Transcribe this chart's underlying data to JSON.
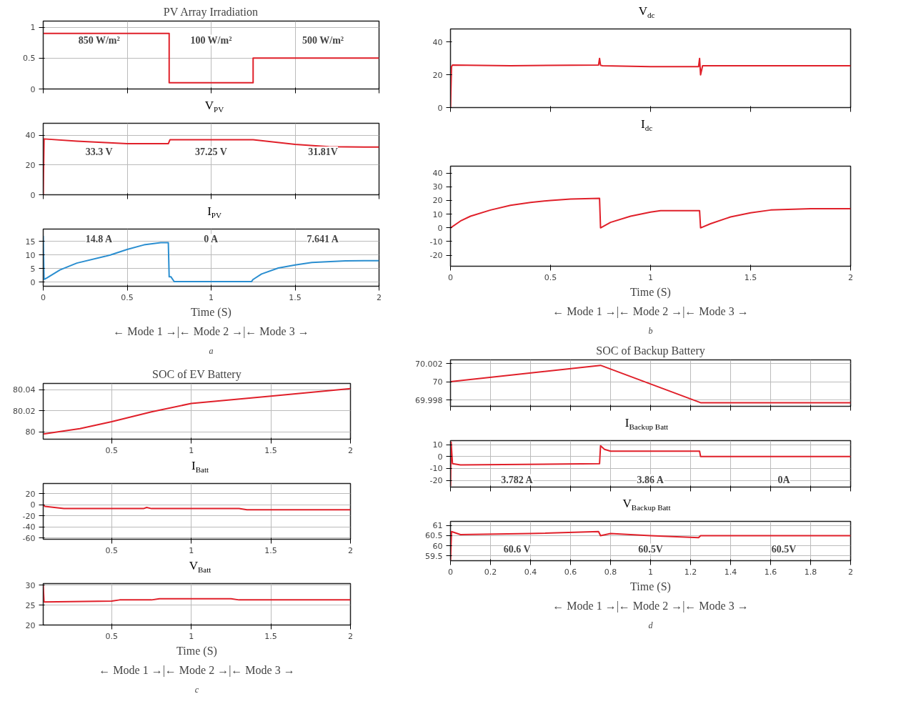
{
  "chart_data": [
    {
      "type": "step",
      "title": "PV Array Irradiation",
      "x": [
        0,
        0.75,
        1.25,
        2
      ],
      "xlim": [
        0,
        2
      ],
      "xticks": [
        0,
        0.5,
        1,
        1.5,
        2
      ],
      "ylim": [
        0,
        1.1
      ],
      "yticks": [
        0,
        0.5,
        1
      ],
      "grid": true,
      "tick_labels": "y",
      "series": [
        {
          "color": "#e0202a",
          "values": [
            0.9,
            0.1,
            0.5,
            0.5
          ]
        }
      ],
      "annotations": [
        "850 W/m²",
        "100 W/m²",
        "500 W/m²"
      ]
    },
    {
      "type": "line",
      "title": "V$_{dc}$",
      "x": [
        0,
        0.005,
        0.01,
        0.3,
        0.74,
        0.745,
        0.75,
        0.76,
        1.0,
        1.24,
        1.245,
        1.25,
        1.26,
        1.5,
        2
      ],
      "xlim": [
        0,
        2
      ],
      "xticks": [
        0,
        0.5,
        1,
        1.5,
        2
      ],
      "ylim": [
        0,
        48
      ],
      "yticks": [
        0,
        20,
        40
      ],
      "tick_labels": "y",
      "series": [
        {
          "color": "#e0202a",
          "values": [
            0,
            25,
            26,
            25.5,
            26,
            30,
            25.8,
            25.5,
            25,
            25,
            30,
            20,
            25.5,
            25.5,
            25.5
          ]
        }
      ]
    },
    {
      "type": "line",
      "title": "V$_{PV}$",
      "x": [
        0,
        0.005,
        0.2,
        0.5,
        0.745,
        0.755,
        1.25,
        1.5,
        1.7,
        2
      ],
      "xlim": [
        0,
        2
      ],
      "xticks": [
        0,
        0.5,
        1,
        1.5,
        2
      ],
      "ylim": [
        0,
        48
      ],
      "yticks": [
        0,
        20,
        40
      ],
      "grid": true,
      "tick_labels": "y",
      "series": [
        {
          "color": "#e0202a",
          "values": [
            0,
            37.5,
            36,
            34.3,
            34.3,
            37,
            37,
            33.8,
            32.3,
            32
          ]
        }
      ],
      "annotations": [
        "33.3 V",
        "37.25 V",
        "31.81V"
      ]
    },
    {
      "type": "line",
      "title": "I$_{dc}$",
      "xlabel": "Time (S)",
      "x": [
        0,
        0.05,
        0.1,
        0.2,
        0.3,
        0.4,
        0.5,
        0.6,
        0.745,
        0.75,
        0.8,
        0.9,
        1.0,
        1.05,
        1.245,
        1.25,
        1.3,
        1.4,
        1.5,
        1.6,
        1.8,
        2
      ],
      "xlim": [
        0,
        2
      ],
      "xticks": [
        0,
        0.5,
        1,
        1.5,
        2
      ],
      "ylim": [
        -28,
        45
      ],
      "yticks": [
        -20,
        -10,
        0,
        10,
        20,
        30,
        40
      ],
      "series": [
        {
          "color": "#e0202a",
          "values": [
            0,
            5,
            8.5,
            13,
            16.5,
            18.5,
            20,
            21,
            21.5,
            0,
            4,
            8.5,
            11.5,
            12.5,
            12.5,
            0,
            3,
            8,
            11,
            13,
            14,
            14
          ]
        }
      ],
      "annotations": [
        "← Mode 1 →|← Mode 2 →|← Mode 3 →",
        "b"
      ]
    },
    {
      "type": "line",
      "title": "I$_{PV}$",
      "xlabel": "Time (S)",
      "x": [
        0,
        0.005,
        0.02,
        0.1,
        0.2,
        0.37,
        0.4,
        0.5,
        0.6,
        0.7,
        0.745,
        0.75,
        0.76,
        0.78,
        0.8,
        1.0,
        1.24,
        1.25,
        1.3,
        1.4,
        1.5,
        1.6,
        1.8,
        2
      ],
      "xlim": [
        0,
        2
      ],
      "xticks": [
        0,
        0.5,
        1,
        1.5,
        2
      ],
      "ylim": [
        -1.5,
        19.5
      ],
      "yticks": [
        0,
        5,
        10,
        15
      ],
      "grid": true,
      "series": [
        {
          "color": "#2a8ed0",
          "values": [
            17,
            1,
            1.5,
            4.5,
            7,
            9.5,
            10,
            12,
            13.7,
            14.5,
            14.5,
            2,
            2,
            0.2,
            0.2,
            0.2,
            0.2,
            1,
            3,
            5.2,
            6.3,
            7.2,
            7.8,
            7.9
          ]
        }
      ],
      "annotations": [
        "14.8 A",
        "0 A",
        "7.641 A",
        "← Mode 1 →|← Mode 2 →|← Mode 3 →",
        "a"
      ]
    },
    {
      "type": "line",
      "title": "SOC of Backup Battery",
      "x": [
        0,
        0.75,
        1.25,
        2
      ],
      "xlim": [
        0,
        2
      ],
      "xticks": [
        0,
        0.2,
        0.4,
        0.6,
        0.8,
        1,
        1.2,
        1.4,
        1.6,
        1.8,
        2
      ],
      "ylim": [
        69.9973,
        70.0024
      ],
      "yticks": [
        69.998,
        70,
        70.002
      ],
      "grid": true,
      "tick_labels": "y",
      "series": [
        {
          "color": "#e0202a",
          "values": [
            70,
            70.0018,
            69.9977,
            69.9977
          ]
        }
      ]
    },
    {
      "type": "line",
      "title": "SOC of EV Battery",
      "x": [
        0.07,
        0.3,
        0.5,
        0.75,
        1.0,
        1.5,
        2
      ],
      "xlim": [
        0.07,
        2
      ],
      "xticks": [
        0.5,
        1,
        1.5,
        2
      ],
      "ylim": [
        79.993,
        80.046
      ],
      "yticks": [
        80,
        80.02,
        80.04
      ],
      "grid": true,
      "series": [
        {
          "color": "#e0202a",
          "values": [
            79.998,
            80.003,
            80.0096,
            80.019,
            80.027,
            80.034,
            80.041
          ]
        }
      ]
    },
    {
      "type": "line",
      "title": "I$_{Backup Batt}$",
      "x": [
        0,
        0.003,
        0.01,
        0.05,
        0.745,
        0.75,
        0.77,
        0.8,
        1.245,
        1.25,
        2
      ],
      "xlim": [
        0,
        2
      ],
      "xticks": [
        0,
        0.2,
        0.4,
        0.6,
        0.8,
        1,
        1.2,
        1.4,
        1.6,
        1.8,
        2
      ],
      "ylim": [
        -25.7,
        13.4
      ],
      "yticks": [
        -20,
        -10,
        0,
        10
      ],
      "grid": true,
      "tick_labels": "y",
      "series": [
        {
          "color": "#e0202a",
          "values": [
            -25,
            12,
            -6,
            -7,
            -6,
            9,
            6,
            4.5,
            4.5,
            0,
            0
          ]
        }
      ],
      "annotations": [
        "3.782 A",
        "3.86 A",
        "0A"
      ]
    },
    {
      "type": "line",
      "title": "I$_{Batt}$",
      "x": [
        0.07,
        0.08,
        0.2,
        0.7,
        0.72,
        0.75,
        1.3,
        1.35,
        2
      ],
      "xlim": [
        0.07,
        2
      ],
      "xticks": [
        0.5,
        1,
        1.5,
        2
      ],
      "ylim": [
        -62,
        38
      ],
      "yticks": [
        -60,
        -40,
        -20,
        0,
        20
      ],
      "grid": true,
      "series": [
        {
          "color": "#e0202a",
          "values": [
            0,
            -3,
            -7,
            -7,
            -5,
            -7,
            -7,
            -9,
            -9
          ]
        }
      ]
    },
    {
      "type": "line",
      "title": "V$_{Backup Batt}$",
      "xlabel": "Time (S)",
      "x": [
        0,
        0.005,
        0.05,
        0.4,
        0.74,
        0.75,
        0.8,
        1.0,
        1.24,
        1.25,
        2
      ],
      "xlim": [
        0,
        2
      ],
      "xticks": [
        0,
        0.2,
        0.4,
        0.6,
        0.8,
        1,
        1.2,
        1.4,
        1.6,
        1.8,
        2
      ],
      "ylim": [
        59.27,
        61.2
      ],
      "yticks": [
        59.5,
        60,
        60.5,
        61
      ],
      "grid": true,
      "series": [
        {
          "color": "#e0202a",
          "values": [
            59.3,
            60.7,
            60.55,
            60.6,
            60.7,
            60.5,
            60.6,
            60.5,
            60.4,
            60.5,
            60.5
          ]
        }
      ],
      "annotations": [
        "60.6 V",
        "60.5V",
        "60.5V",
        "← Mode 1 →|← Mode 2 →|← Mode 3 →",
        "d"
      ]
    },
    {
      "type": "line",
      "title": "V$_{Batt}$",
      "xlabel": "Time (S)",
      "x": [
        0.07,
        0.075,
        0.5,
        0.55,
        0.75,
        0.8,
        1.25,
        1.3,
        2
      ],
      "xlim": [
        0.07,
        2
      ],
      "xticks": [
        0.5,
        1,
        1.5,
        2
      ],
      "ylim": [
        20,
        30.4
      ],
      "yticks": [
        20,
        25,
        30
      ],
      "grid": true,
      "series": [
        {
          "color": "#e0202a",
          "values": [
            30,
            25.8,
            26,
            26.3,
            26.3,
            26.6,
            26.6,
            26.3,
            26.3
          ]
        }
      ],
      "annotations": [
        "← Mode 1 →|← Mode 2 →|← Mode 3 →",
        "c"
      ]
    }
  ]
}
